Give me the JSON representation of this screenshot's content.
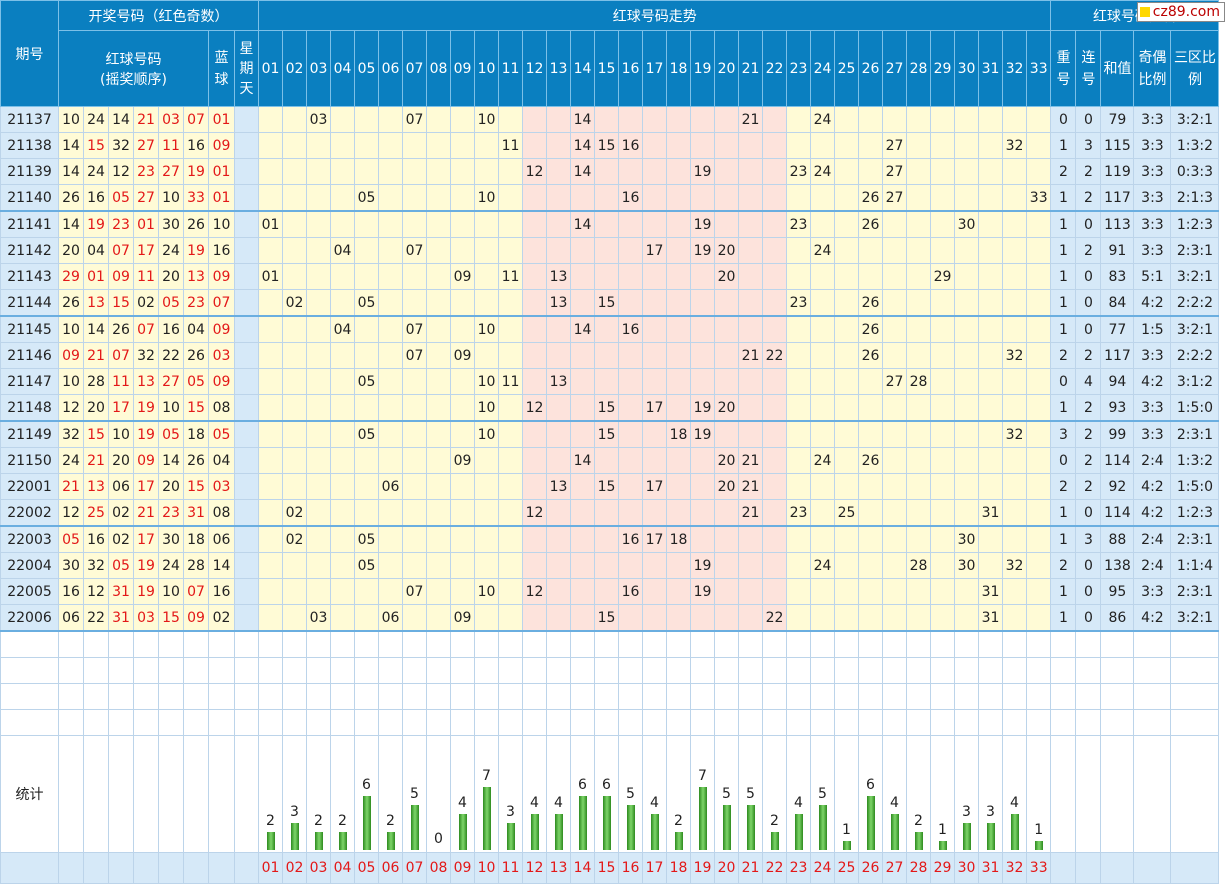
{
  "header": {
    "period": "期号",
    "draw_group": "开奖号码（红色奇数）",
    "red_balls": "红球号码",
    "red_balls_order": "(摇奖顺序)",
    "blue": "蓝球",
    "day": "星期天",
    "trend_group": "红球号码走势",
    "analysis_group": "红球号码分析",
    "repeat": "重号",
    "consec": "连号",
    "sum": "和值",
    "oddeven": "奇偶比例",
    "zone": "三区比例"
  },
  "logo": "cz89.com",
  "stat_label": "统计",
  "trend_numbers": [
    "01",
    "02",
    "03",
    "04",
    "05",
    "06",
    "07",
    "08",
    "09",
    "10",
    "11",
    "12",
    "13",
    "14",
    "15",
    "16",
    "17",
    "18",
    "19",
    "20",
    "21",
    "22",
    "23",
    "24",
    "25",
    "26",
    "27",
    "28",
    "29",
    "30",
    "31",
    "32",
    "33"
  ],
  "rows": [
    {
      "period": "21137",
      "reds": [
        "10",
        "24",
        "14",
        "21",
        "03",
        "07"
      ],
      "blue": "01",
      "rep": "0",
      "con": "0",
      "sum": "79",
      "oe": "3:3",
      "zone": "3:2:1"
    },
    {
      "period": "21138",
      "reds": [
        "14",
        "15",
        "32",
        "27",
        "11",
        "16"
      ],
      "blue": "09",
      "rep": "1",
      "con": "3",
      "sum": "115",
      "oe": "3:3",
      "zone": "1:3:2"
    },
    {
      "period": "21139",
      "reds": [
        "14",
        "24",
        "12",
        "23",
        "27",
        "19"
      ],
      "blue": "01",
      "rep": "2",
      "con": "2",
      "sum": "119",
      "oe": "3:3",
      "zone": "0:3:3"
    },
    {
      "period": "21140",
      "reds": [
        "26",
        "16",
        "05",
        "27",
        "10",
        "33"
      ],
      "blue": "01",
      "rep": "1",
      "con": "2",
      "sum": "117",
      "oe": "3:3",
      "zone": "2:1:3"
    },
    {
      "period": "21141",
      "reds": [
        "14",
        "19",
        "23",
        "01",
        "30",
        "26"
      ],
      "blue": "10",
      "rep": "1",
      "con": "0",
      "sum": "113",
      "oe": "3:3",
      "zone": "1:2:3"
    },
    {
      "period": "21142",
      "reds": [
        "20",
        "04",
        "07",
        "17",
        "24",
        "19"
      ],
      "blue": "16",
      "rep": "1",
      "con": "2",
      "sum": "91",
      "oe": "3:3",
      "zone": "2:3:1"
    },
    {
      "period": "21143",
      "reds": [
        "29",
        "01",
        "09",
        "11",
        "20",
        "13"
      ],
      "blue": "09",
      "rep": "1",
      "con": "0",
      "sum": "83",
      "oe": "5:1",
      "zone": "3:2:1"
    },
    {
      "period": "21144",
      "reds": [
        "26",
        "13",
        "15",
        "02",
        "05",
        "23"
      ],
      "blue": "07",
      "rep": "1",
      "con": "0",
      "sum": "84",
      "oe": "4:2",
      "zone": "2:2:2"
    },
    {
      "period": "21145",
      "reds": [
        "10",
        "14",
        "26",
        "07",
        "16",
        "04"
      ],
      "blue": "09",
      "rep": "1",
      "con": "0",
      "sum": "77",
      "oe": "1:5",
      "zone": "3:2:1"
    },
    {
      "period": "21146",
      "reds": [
        "09",
        "21",
        "07",
        "32",
        "22",
        "26"
      ],
      "blue": "03",
      "rep": "2",
      "con": "2",
      "sum": "117",
      "oe": "3:3",
      "zone": "2:2:2"
    },
    {
      "period": "21147",
      "reds": [
        "10",
        "28",
        "11",
        "13",
        "27",
        "05"
      ],
      "blue": "09",
      "rep": "0",
      "con": "4",
      "sum": "94",
      "oe": "4:2",
      "zone": "3:1:2"
    },
    {
      "period": "21148",
      "reds": [
        "12",
        "20",
        "17",
        "19",
        "10",
        "15"
      ],
      "blue": "08",
      "rep": "1",
      "con": "2",
      "sum": "93",
      "oe": "3:3",
      "zone": "1:5:0"
    },
    {
      "period": "21149",
      "reds": [
        "32",
        "15",
        "10",
        "19",
        "05",
        "18"
      ],
      "blue": "05",
      "rep": "3",
      "con": "2",
      "sum": "99",
      "oe": "3:3",
      "zone": "2:3:1"
    },
    {
      "period": "21150",
      "reds": [
        "24",
        "21",
        "20",
        "09",
        "14",
        "26"
      ],
      "blue": "04",
      "rep": "0",
      "con": "2",
      "sum": "114",
      "oe": "2:4",
      "zone": "1:3:2"
    },
    {
      "period": "22001",
      "reds": [
        "21",
        "13",
        "06",
        "17",
        "20",
        "15"
      ],
      "blue": "03",
      "rep": "2",
      "con": "2",
      "sum": "92",
      "oe": "4:2",
      "zone": "1:5:0"
    },
    {
      "period": "22002",
      "reds": [
        "12",
        "25",
        "02",
        "21",
        "23",
        "31"
      ],
      "blue": "08",
      "rep": "1",
      "con": "0",
      "sum": "114",
      "oe": "4:2",
      "zone": "1:2:3"
    },
    {
      "period": "22003",
      "reds": [
        "05",
        "16",
        "02",
        "17",
        "30",
        "18"
      ],
      "blue": "06",
      "rep": "1",
      "con": "3",
      "sum": "88",
      "oe": "2:4",
      "zone": "2:3:1"
    },
    {
      "period": "22004",
      "reds": [
        "30",
        "32",
        "05",
        "19",
        "24",
        "28"
      ],
      "blue": "14",
      "rep": "2",
      "con": "0",
      "sum": "138",
      "oe": "2:4",
      "zone": "1:1:4"
    },
    {
      "period": "22005",
      "reds": [
        "16",
        "12",
        "31",
        "19",
        "10",
        "07"
      ],
      "blue": "16",
      "rep": "1",
      "con": "0",
      "sum": "95",
      "oe": "3:3",
      "zone": "2:3:1"
    },
    {
      "period": "22006",
      "reds": [
        "06",
        "22",
        "31",
        "03",
        "15",
        "09"
      ],
      "blue": "02",
      "rep": "1",
      "con": "0",
      "sum": "86",
      "oe": "4:2",
      "zone": "3:2:1"
    }
  ],
  "stats": [
    2,
    3,
    2,
    2,
    6,
    2,
    5,
    0,
    4,
    7,
    3,
    4,
    4,
    6,
    6,
    5,
    4,
    2,
    7,
    5,
    5,
    2,
    4,
    5,
    1,
    6,
    4,
    2,
    1,
    3,
    3,
    4,
    1
  ],
  "colors": {
    "header": "#0a7fc0",
    "odd": "#e31818",
    "bar": "#4caf3a"
  }
}
